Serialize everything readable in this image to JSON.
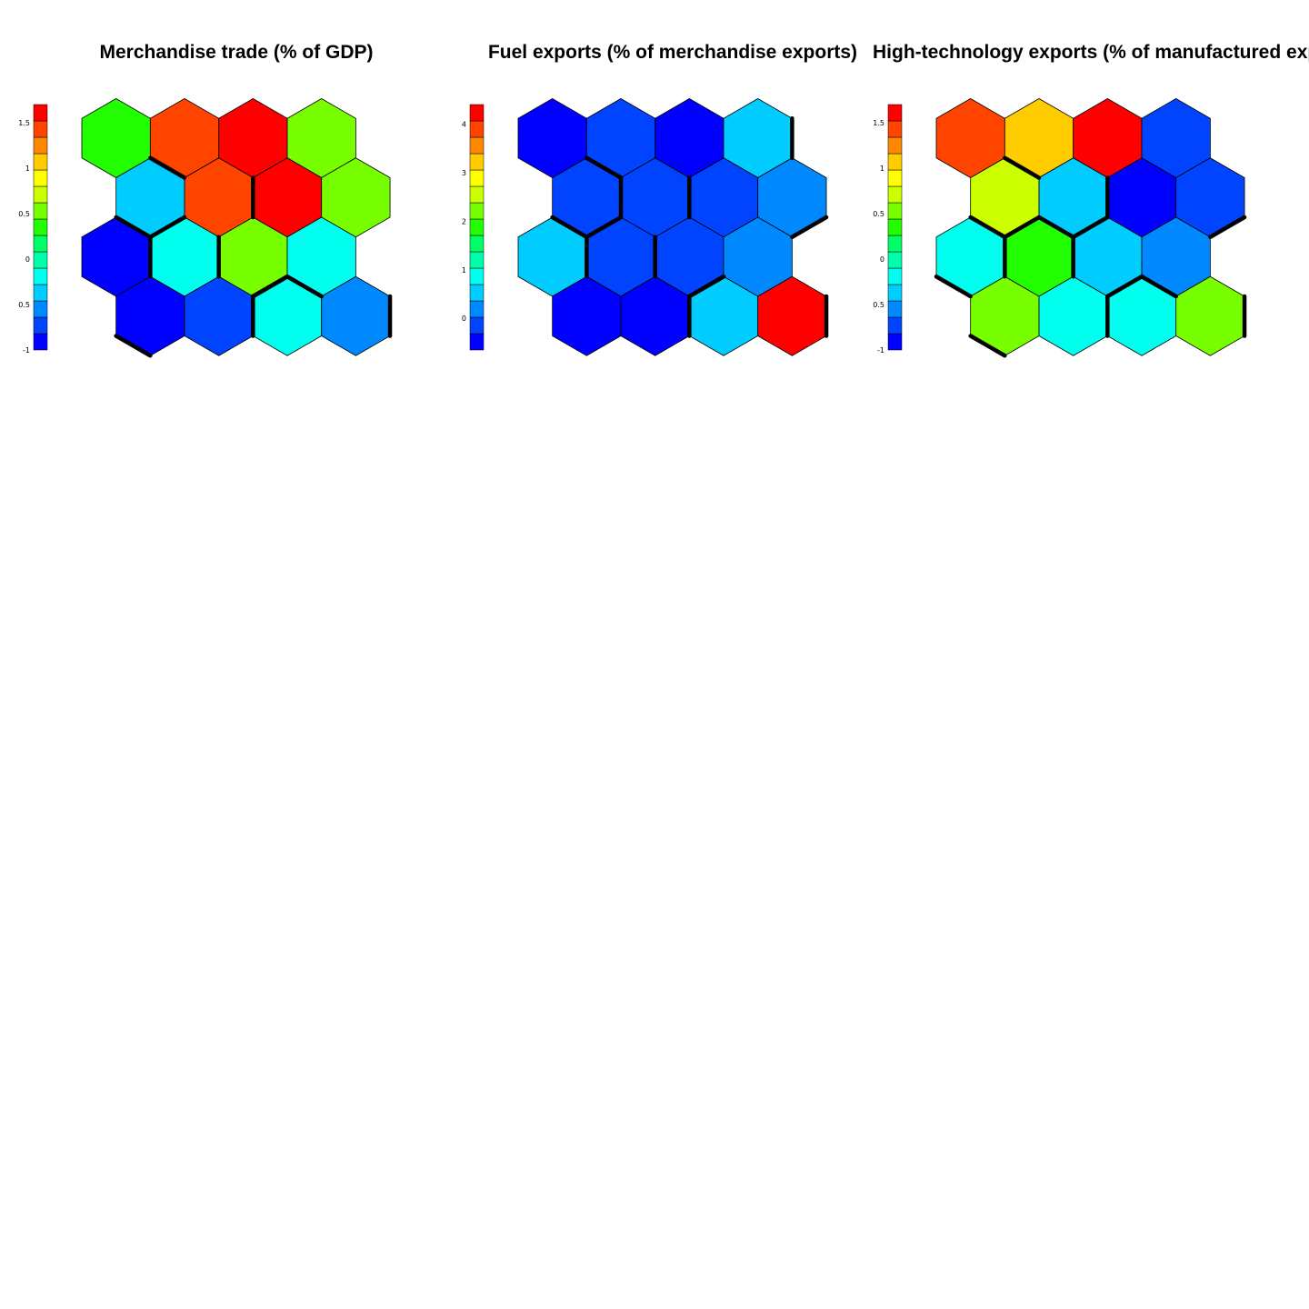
{
  "chart_data": [
    {
      "type": "heatmap",
      "subtype": "som-hexagonal-property-map",
      "title": "Merchandise trade (% of GDP)",
      "grid": {
        "rows": 4,
        "cols": 4,
        "row_order": "top-to-bottom",
        "odd_rows_offset": "right"
      },
      "scale": {
        "min": -1.0,
        "max": 1.7,
        "ticks": [
          "1.5",
          "1",
          "0.5",
          "0",
          "-0.5",
          "-1"
        ],
        "tick_values": [
          1.5,
          1,
          0.5,
          0,
          -0.5,
          -1
        ]
      },
      "values": [
        [
          0.35,
          1.35,
          1.65,
          0.55
        ],
        [
          -0.35,
          1.45,
          1.65,
          0.55
        ],
        [
          -1.0,
          -0.15,
          0.55,
          -0.15
        ],
        [
          -1.0,
          -0.75,
          -0.15,
          -0.55
        ]
      ],
      "cluster_boundaries": [
        [
          2,
          10
        ],
        [
          3,
          11
        ],
        [
          6,
          11
        ],
        [
          10,
          15
        ],
        [
          16,
          22
        ],
        [
          21,
          29
        ],
        [
          20,
          26
        ],
        [
          22,
          26
        ],
        [
          28,
          34
        ],
        [
          29,
          34
        ],
        [
          30,
          34
        ],
        [
          31,
          37
        ]
      ]
    },
    {
      "type": "heatmap",
      "subtype": "som-hexagonal-property-map",
      "title": "Fuel exports (% of merchandise exports)",
      "grid": {
        "rows": 4,
        "cols": 4,
        "row_order": "top-to-bottom",
        "odd_rows_offset": "right"
      },
      "scale": {
        "min": -0.65,
        "max": 4.4,
        "ticks": [
          "4",
          "3",
          "2",
          "1",
          "0"
        ],
        "tick_values": [
          4,
          3,
          2,
          1,
          0
        ]
      },
      "values": [
        [
          -0.6,
          -0.1,
          -0.6,
          0.6
        ],
        [
          -0.1,
          -0.1,
          -0.1,
          0.25
        ],
        [
          0.6,
          -0.1,
          -0.1,
          0.25
        ],
        [
          -0.6,
          -0.6,
          0.6,
          4.4
        ]
      ],
      "cluster_boundaries": [
        [
          1,
          8
        ],
        [
          2,
          10
        ],
        [
          3,
          11
        ],
        [
          6,
          11
        ],
        [
          7,
          11
        ],
        [
          10,
          15
        ],
        [
          14,
          19
        ],
        [
          16,
          22
        ],
        [
          20,
          26
        ],
        [
          22,
          26
        ],
        [
          28,
          34
        ],
        [
          29,
          34
        ],
        [
          31,
          37
        ]
      ]
    },
    {
      "type": "heatmap",
      "subtype": "som-hexagonal-property-map",
      "title": "High-technology exports (% of manufactured exports)",
      "grid": {
        "rows": 4,
        "cols": 4,
        "row_order": "top-to-bottom",
        "odd_rows_offset": "right"
      },
      "scale": {
        "min": -1.0,
        "max": 1.7,
        "ticks": [
          "1.5",
          "1",
          "0.5",
          "0",
          "-0.5",
          "-1"
        ],
        "tick_values": [
          1.5,
          1,
          0.5,
          0,
          -0.5,
          -1
        ]
      },
      "values": [
        [
          1.35,
          1.05,
          1.65,
          -0.75
        ],
        [
          0.75,
          -0.35,
          -1.0,
          -0.75
        ],
        [
          -0.15,
          0.35,
          -0.35,
          -0.55
        ],
        [
          0.55,
          -0.15,
          -0.15,
          0.55
        ]
      ],
      "cluster_boundaries": [
        [
          2,
          10
        ],
        [
          3,
          11
        ],
        [
          6,
          11
        ],
        [
          8,
          14
        ],
        [
          9,
          14
        ],
        [
          10,
          15
        ],
        [
          14,
          19
        ],
        [
          15,
          20
        ],
        [
          16,
          22
        ],
        [
          21,
          29
        ],
        [
          22,
          26
        ],
        [
          28,
          34
        ],
        [
          29,
          34
        ],
        [
          30,
          34
        ],
        [
          31,
          37
        ]
      ]
    }
  ],
  "colors": {
    "palette": [
      "#0000FF",
      "#0044FF",
      "#0088FF",
      "#00CCFF",
      "#00FFEE",
      "#00FFAA",
      "#00FF66",
      "#22FF00",
      "#77FF00",
      "#CCFF00",
      "#FFFF00",
      "#FFCC00",
      "#FF8800",
      "#FF4400",
      "#FF0000"
    ],
    "outline": "#000000",
    "background": "#FFFFFF"
  }
}
